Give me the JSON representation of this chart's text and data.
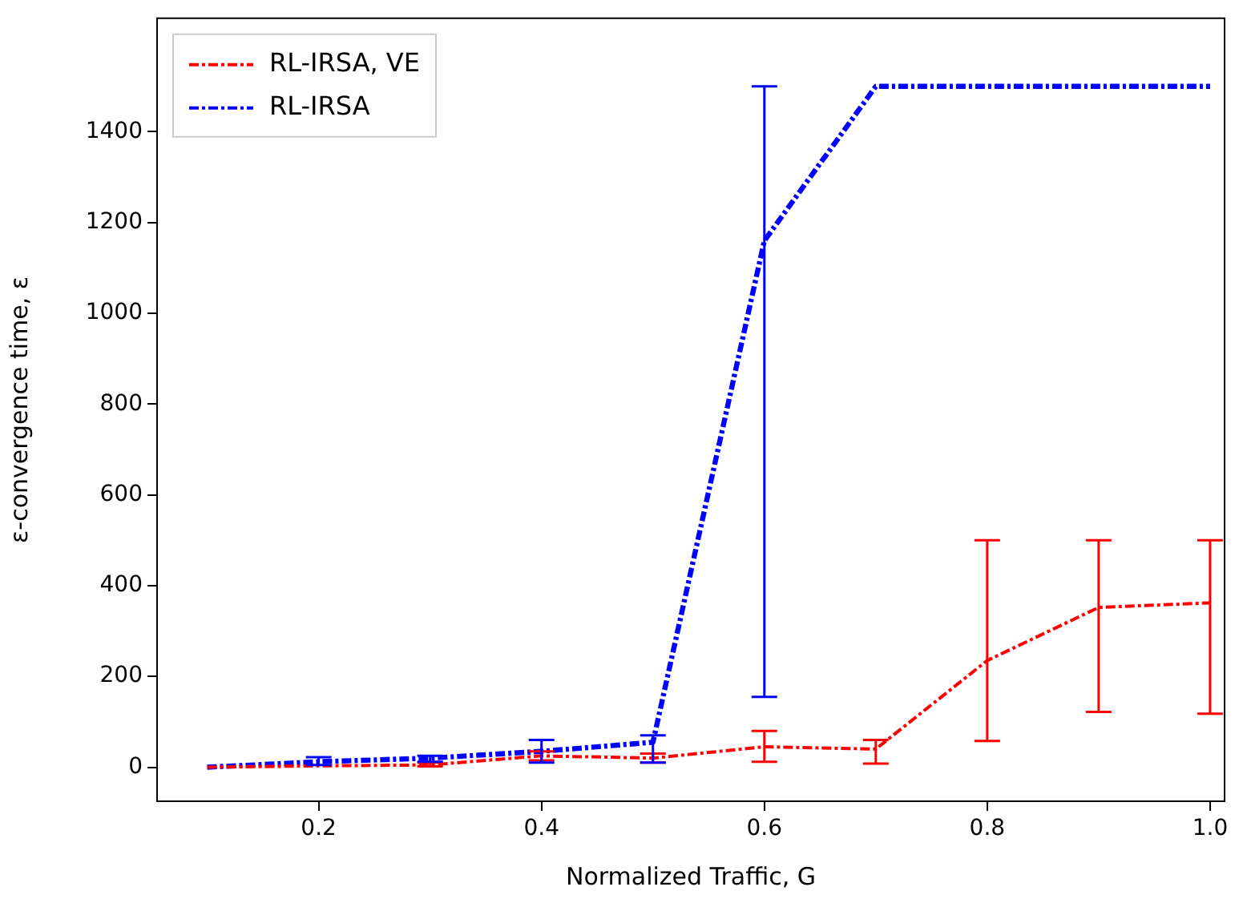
{
  "chart_data": {
    "type": "line",
    "xlabel": "Normalized Traffic, G",
    "ylabel": "ε-convergence time, ε",
    "x": [
      0.1,
      0.2,
      0.3,
      0.4,
      0.5,
      0.6,
      0.7,
      0.8,
      0.9,
      1.0
    ],
    "series": [
      {
        "name": "RL-IRSA, VE",
        "color": "#ff0000",
        "values": [
          0,
          3,
          5,
          25,
          20,
          45,
          40,
          235,
          352,
          362
        ],
        "errors": [
          null,
          null,
          [
            2,
            10
          ],
          [
            15,
            35
          ],
          [
            10,
            30
          ],
          [
            12,
            80
          ],
          [
            8,
            60
          ],
          [
            58,
            500
          ],
          [
            122,
            500
          ],
          [
            118,
            500
          ]
        ]
      },
      {
        "name": "RL-IRSA",
        "color": "#0000ff",
        "values": [
          0,
          12,
          20,
          35,
          55,
          1160,
          1500,
          1500,
          1500,
          1500
        ],
        "errors": [
          null,
          [
            5,
            22
          ],
          [
            12,
            25
          ],
          [
            10,
            60
          ],
          [
            10,
            70
          ],
          [
            155,
            1500
          ],
          null,
          null,
          null,
          null
        ]
      }
    ],
    "xlim": [
      0.055,
      1.013
    ],
    "ylim": [
      -75,
      1650
    ],
    "xticks": [
      0.2,
      0.4,
      0.6,
      0.8,
      {
        "value": 1.0,
        "label": "1.0"
      }
    ],
    "yticks": [
      0,
      200,
      400,
      600,
      800,
      1000,
      1200,
      1400
    ],
    "grid": false,
    "legend": "top left",
    "marker": "none",
    "line_style": "dashdot"
  }
}
